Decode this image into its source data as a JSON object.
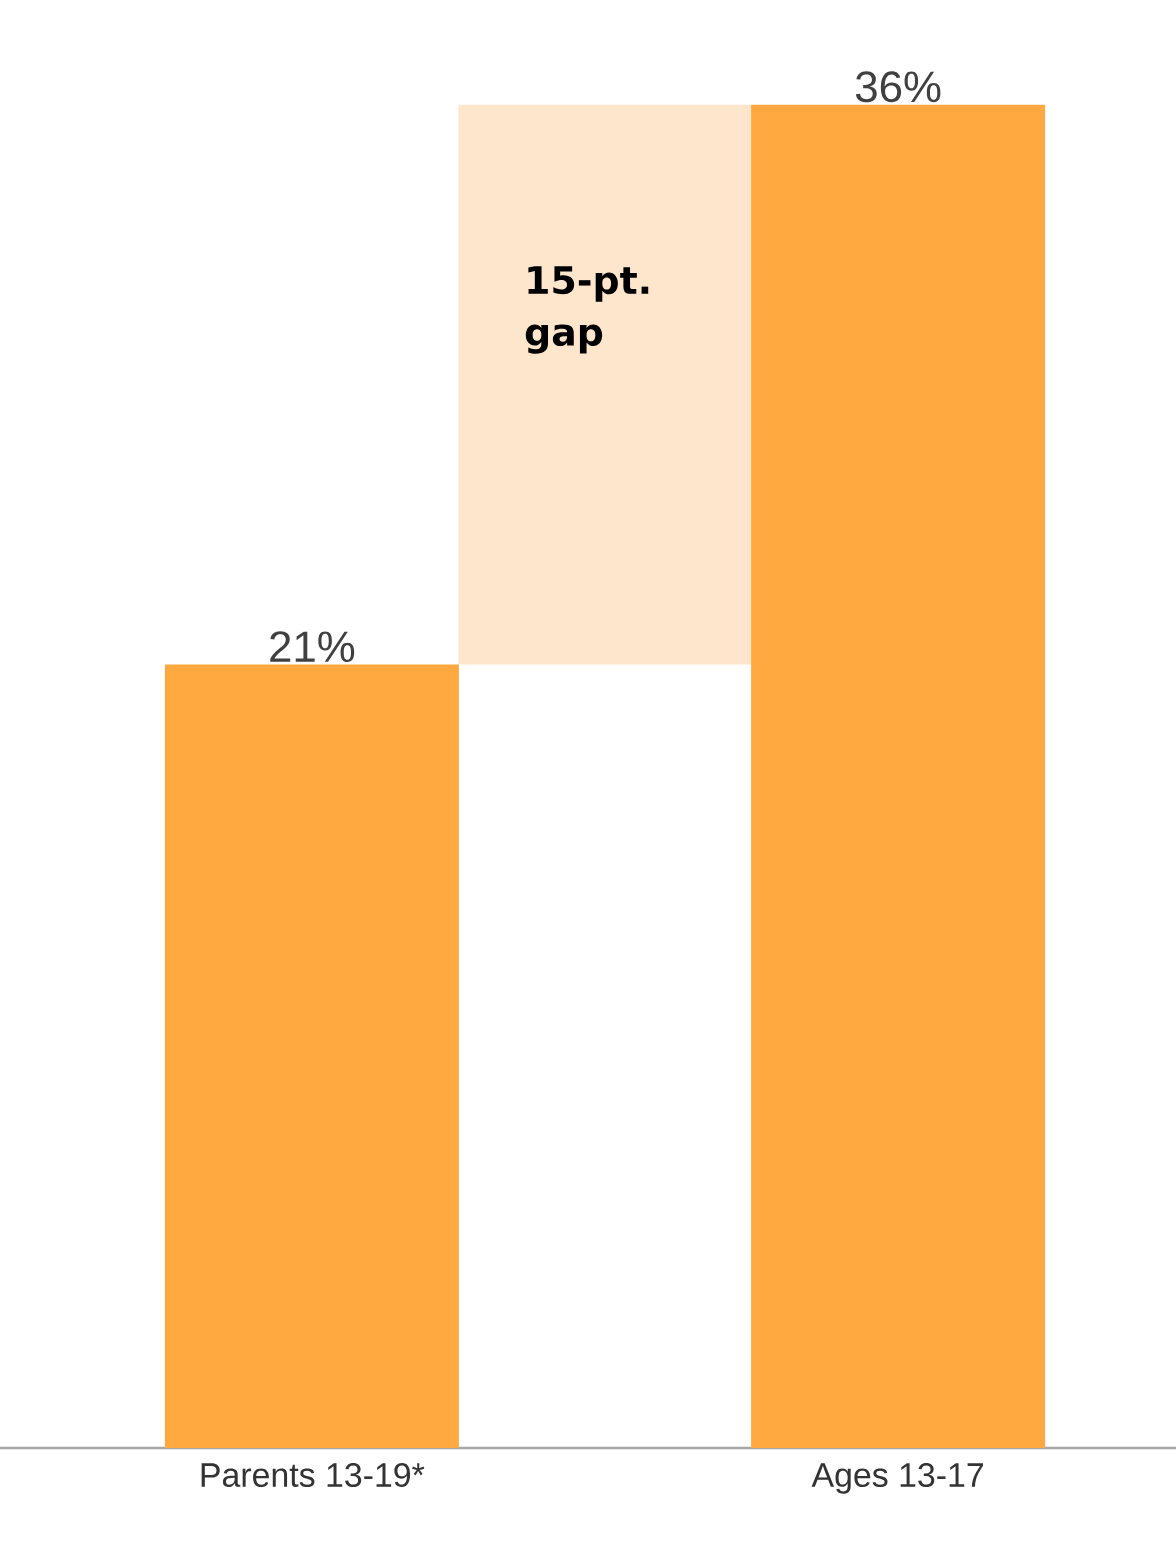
{
  "chart_data": {
    "type": "bar",
    "categories": [
      "Parents 13-19*",
      "Ages 13-17"
    ],
    "values": [
      21,
      36
    ],
    "color": "#ffa940",
    "value_labels": [
      "21%",
      "36%"
    ],
    "tick_labels": "x",
    "bands": [
      {
        "axis": "y",
        "from": 21,
        "to": 36,
        "label": "15-pt. gap",
        "color": "#fde6cc"
      }
    ]
  }
}
